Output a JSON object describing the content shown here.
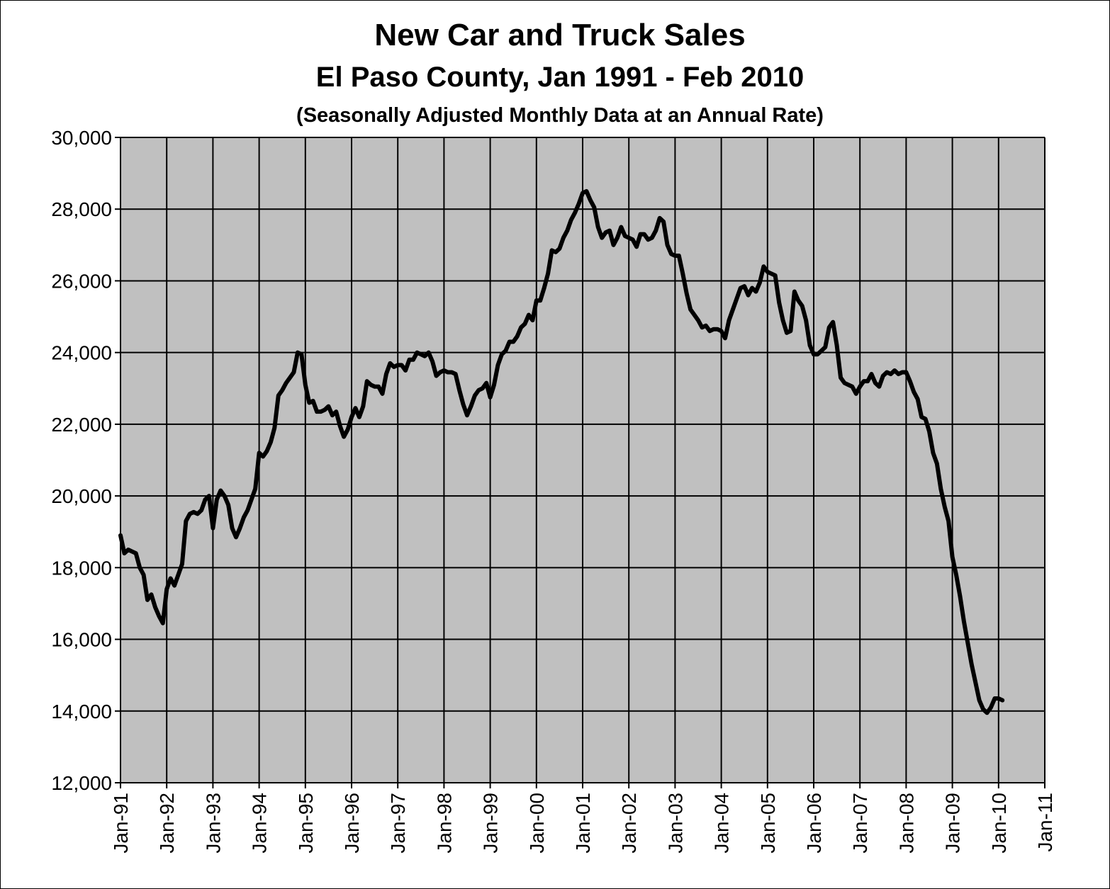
{
  "chart_data": {
    "type": "line",
    "title": "New Car and Truck Sales",
    "subtitle": "El Paso County, Jan 1991 -  Feb 2010",
    "note": "(Seasonally Adjusted Monthly Data at an Annual Rate)",
    "color": "#000000",
    "background": "#c0c0c0",
    "grid": true,
    "x": [
      "1991-01",
      "1991-02",
      "1991-03",
      "1991-04",
      "1991-05",
      "1991-06",
      "1991-07",
      "1991-08",
      "1991-09",
      "1991-10",
      "1991-11",
      "1991-12",
      "1992-01",
      "1992-02",
      "1992-03",
      "1992-04",
      "1992-05",
      "1992-06",
      "1992-07",
      "1992-08",
      "1992-09",
      "1992-10",
      "1992-11",
      "1992-12",
      "1993-01",
      "1993-02",
      "1993-03",
      "1993-04",
      "1993-05",
      "1993-06",
      "1993-07",
      "1993-08",
      "1993-09",
      "1993-10",
      "1993-11",
      "1993-12",
      "1994-01",
      "1994-02",
      "1994-03",
      "1994-04",
      "1994-05",
      "1994-06",
      "1994-07",
      "1994-08",
      "1994-09",
      "1994-10",
      "1994-11",
      "1994-12",
      "1995-01",
      "1995-02",
      "1995-03",
      "1995-04",
      "1995-05",
      "1995-06",
      "1995-07",
      "1995-08",
      "1995-09",
      "1995-10",
      "1995-11",
      "1995-12",
      "1996-01",
      "1996-02",
      "1996-03",
      "1996-04",
      "1996-05",
      "1996-06",
      "1996-07",
      "1996-08",
      "1996-09",
      "1996-10",
      "1996-11",
      "1996-12",
      "1997-01",
      "1997-02",
      "1997-03",
      "1997-04",
      "1997-05",
      "1997-06",
      "1997-07",
      "1997-08",
      "1997-09",
      "1997-10",
      "1997-11",
      "1997-12",
      "1998-01",
      "1998-02",
      "1998-03",
      "1998-04",
      "1998-05",
      "1998-06",
      "1998-07",
      "1998-08",
      "1998-09",
      "1998-10",
      "1998-11",
      "1998-12",
      "1999-01",
      "1999-02",
      "1999-03",
      "1999-04",
      "1999-05",
      "1999-06",
      "1999-07",
      "1999-08",
      "1999-09",
      "1999-10",
      "1999-11",
      "1999-12",
      "2000-01",
      "2000-02",
      "2000-03",
      "2000-04",
      "2000-05",
      "2000-06",
      "2000-07",
      "2000-08",
      "2000-09",
      "2000-10",
      "2000-11",
      "2000-12",
      "2001-01",
      "2001-02",
      "2001-03",
      "2001-04",
      "2001-05",
      "2001-06",
      "2001-07",
      "2001-08",
      "2001-09",
      "2001-10",
      "2001-11",
      "2001-12",
      "2002-01",
      "2002-02",
      "2002-03",
      "2002-04",
      "2002-05",
      "2002-06",
      "2002-07",
      "2002-08",
      "2002-09",
      "2002-10",
      "2002-11",
      "2002-12",
      "2003-01",
      "2003-02",
      "2003-03",
      "2003-04",
      "2003-05",
      "2003-06",
      "2003-07",
      "2003-08",
      "2003-09",
      "2003-10",
      "2003-11",
      "2003-12",
      "2004-01",
      "2004-02",
      "2004-03",
      "2004-04",
      "2004-05",
      "2004-06",
      "2004-07",
      "2004-08",
      "2004-09",
      "2004-10",
      "2004-11",
      "2004-12",
      "2005-01",
      "2005-02",
      "2005-03",
      "2005-04",
      "2005-05",
      "2005-06",
      "2005-07",
      "2005-08",
      "2005-09",
      "2005-10",
      "2005-11",
      "2005-12",
      "2006-01",
      "2006-02",
      "2006-03",
      "2006-04",
      "2006-05",
      "2006-06",
      "2006-07",
      "2006-08",
      "2006-09",
      "2006-10",
      "2006-11",
      "2006-12",
      "2007-01",
      "2007-02",
      "2007-03",
      "2007-04",
      "2007-05",
      "2007-06",
      "2007-07",
      "2007-08",
      "2007-09",
      "2007-10",
      "2007-11",
      "2007-12",
      "2008-01",
      "2008-02",
      "2008-03",
      "2008-04",
      "2008-05",
      "2008-06",
      "2008-07",
      "2008-08",
      "2008-09",
      "2008-10",
      "2008-11",
      "2008-12",
      "2009-01",
      "2009-02",
      "2009-03",
      "2009-04",
      "2009-05",
      "2009-06",
      "2009-07",
      "2009-08",
      "2009-09",
      "2009-10",
      "2009-11",
      "2009-12",
      "2010-01",
      "2010-02"
    ],
    "values": [
      18900,
      18400,
      18500,
      18450,
      18400,
      18000,
      17800,
      17100,
      17250,
      16900,
      16650,
      16450,
      17400,
      17700,
      17500,
      17800,
      18100,
      19300,
      19500,
      19550,
      19500,
      19600,
      19900,
      20000,
      19100,
      19900,
      20150,
      20000,
      19750,
      19100,
      18850,
      19100,
      19400,
      19600,
      19900,
      20200,
      21200,
      21100,
      21250,
      21500,
      21900,
      22800,
      22950,
      23150,
      23300,
      23450,
      24000,
      23950,
      23100,
      22600,
      22650,
      22350,
      22350,
      22400,
      22500,
      22250,
      22350,
      21950,
      21650,
      21850,
      22200,
      22450,
      22200,
      22500,
      23200,
      23100,
      23050,
      23050,
      22850,
      23400,
      23700,
      23600,
      23650,
      23650,
      23500,
      23800,
      23800,
      24000,
      23950,
      23900,
      24000,
      23750,
      23350,
      23450,
      23500,
      23450,
      23450,
      23400,
      22950,
      22550,
      22250,
      22500,
      22800,
      22950,
      23000,
      23150,
      22750,
      23100,
      23650,
      23950,
      24050,
      24300,
      24300,
      24450,
      24700,
      24800,
      25050,
      24900,
      25450,
      25450,
      25800,
      26200,
      26850,
      26800,
      26900,
      27200,
      27400,
      27700,
      27900,
      28150,
      28450,
      28500,
      28250,
      28050,
      27500,
      27200,
      27350,
      27400,
      27000,
      27200,
      27500,
      27250,
      27200,
      27150,
      26950,
      27300,
      27300,
      27150,
      27200,
      27400,
      27750,
      27650,
      27000,
      26750,
      26700,
      26700,
      26200,
      25650,
      25200,
      25050,
      24900,
      24700,
      24750,
      24600,
      24650,
      24650,
      24600,
      24400,
      24900,
      25200,
      25500,
      25800,
      25850,
      25600,
      25800,
      25700,
      25950,
      26400,
      26250,
      26200,
      26150,
      25400,
      24900,
      24550,
      24600,
      25700,
      25450,
      25300,
      24900,
      24200,
      23950,
      23950,
      24050,
      24150,
      24700,
      24850,
      24200,
      23300,
      23150,
      23100,
      23050,
      22850,
      23050,
      23200,
      23200,
      23400,
      23150,
      23050,
      23350,
      23450,
      23400,
      23500,
      23400,
      23450,
      23450,
      23200,
      22900,
      22700,
      22200,
      22150,
      21800,
      21200,
      20900,
      20200,
      19700,
      19300,
      18300,
      17800,
      17200,
      16500,
      15900,
      15300,
      14800,
      14300,
      14050,
      13950,
      14100,
      14350,
      14350,
      14300
    ],
    "xlim": [
      "1991-01",
      "2011-01"
    ],
    "xticks": [
      {
        "value": "1991-01",
        "label": "Jan-91"
      },
      {
        "value": "1992-01",
        "label": "Jan-92"
      },
      {
        "value": "1993-01",
        "label": "Jan-93"
      },
      {
        "value": "1994-01",
        "label": "Jan-94"
      },
      {
        "value": "1995-01",
        "label": "Jan-95"
      },
      {
        "value": "1996-01",
        "label": "Jan-96"
      },
      {
        "value": "1997-01",
        "label": "Jan-97"
      },
      {
        "value": "1998-01",
        "label": "Jan-98"
      },
      {
        "value": "1999-01",
        "label": "Jan-99"
      },
      {
        "value": "2000-01",
        "label": "Jan-00"
      },
      {
        "value": "2001-01",
        "label": "Jan-01"
      },
      {
        "value": "2002-01",
        "label": "Jan-02"
      },
      {
        "value": "2003-01",
        "label": "Jan-03"
      },
      {
        "value": "2004-01",
        "label": "Jan-04"
      },
      {
        "value": "2005-01",
        "label": "Jan-05"
      },
      {
        "value": "2006-01",
        "label": "Jan-06"
      },
      {
        "value": "2007-01",
        "label": "Jan-07"
      },
      {
        "value": "2008-01",
        "label": "Jan-08"
      },
      {
        "value": "2009-01",
        "label": "Jan-09"
      },
      {
        "value": "2010-01",
        "label": "Jan-10"
      },
      {
        "value": "2011-01",
        "label": "Jan-11"
      }
    ],
    "ylim": [
      12000,
      30000
    ],
    "yticks": [
      {
        "value": 12000,
        "label": "12,000"
      },
      {
        "value": 14000,
        "label": "14,000"
      },
      {
        "value": 16000,
        "label": "16,000"
      },
      {
        "value": 18000,
        "label": "18,000"
      },
      {
        "value": 20000,
        "label": "20,000"
      },
      {
        "value": 22000,
        "label": "22,000"
      },
      {
        "value": 24000,
        "label": "24,000"
      },
      {
        "value": 26000,
        "label": "26,000"
      },
      {
        "value": 28000,
        "label": "28,000"
      },
      {
        "value": 30000,
        "label": "30,000"
      }
    ]
  }
}
